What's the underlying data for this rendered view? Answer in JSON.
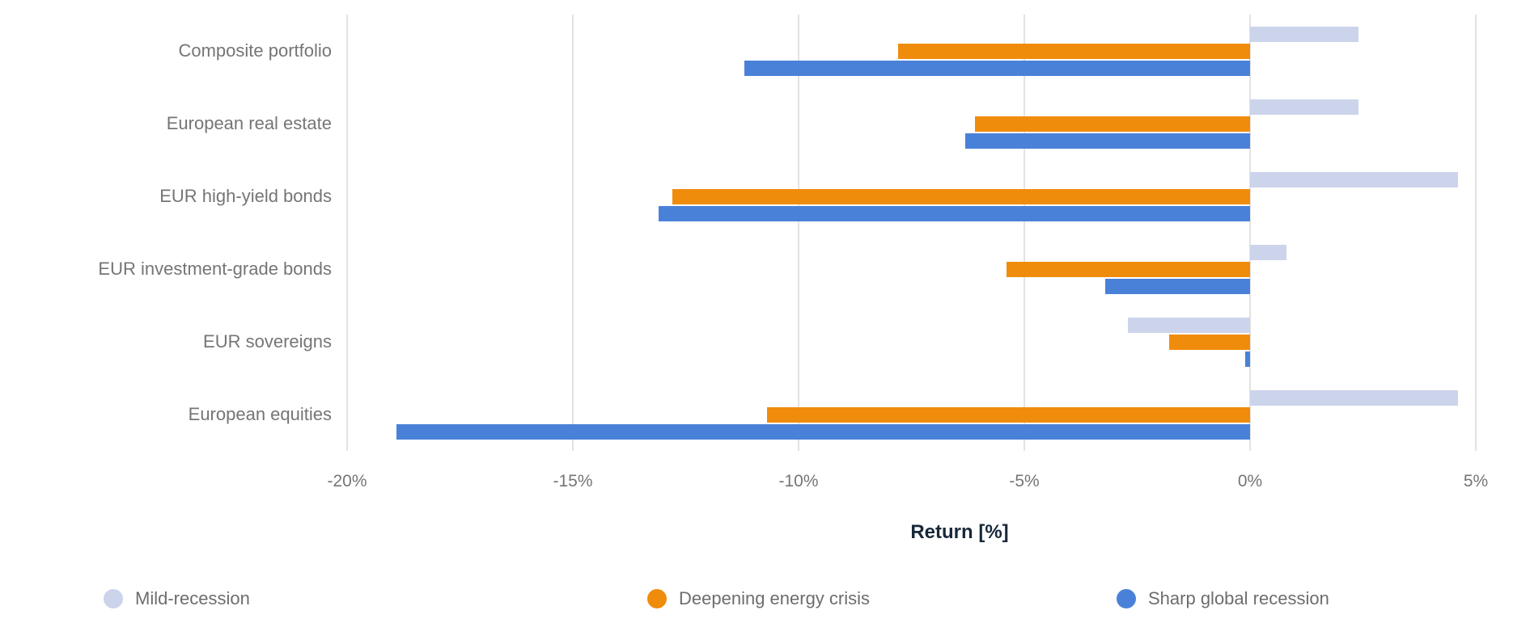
{
  "chart_data": {
    "type": "bar",
    "orientation": "horizontal",
    "title": "",
    "xlabel": "Return [%]",
    "ylabel": "",
    "xlim": [
      -20,
      5
    ],
    "xticks": [
      -20,
      -15,
      -10,
      -5,
      0,
      5
    ],
    "xtick_labels": [
      "-20%",
      "-15%",
      "-10%",
      "-5%",
      "0%",
      "5%"
    ],
    "grid": true,
    "legend_position": "bottom",
    "categories": [
      "Composite portfolio",
      "European real estate",
      "EUR high-yield bonds",
      "EUR investment-grade bonds",
      "EUR sovereigns",
      "European equities"
    ],
    "series": [
      {
        "name": "Mild-recession",
        "color": "#ccd4ec",
        "values": [
          2.4,
          2.4,
          4.6,
          0.8,
          -2.7,
          4.6
        ]
      },
      {
        "name": "Deepening energy crisis",
        "color": "#f08c0c",
        "values": [
          -7.8,
          -6.1,
          -12.8,
          -5.4,
          -1.8,
          -10.7
        ]
      },
      {
        "name": "Sharp global recession",
        "color": "#4a81d8",
        "values": [
          -11.2,
          -6.3,
          -13.1,
          -3.2,
          -0.1,
          -18.9
        ]
      }
    ]
  },
  "colors": {
    "gridline": "#e2e2e2",
    "category_text": "#757575",
    "tick_text": "#757575",
    "axis_title_text": "#18283a",
    "legend_text": "#6d6d6d",
    "background": "#ffffff"
  },
  "layout_values": {
    "legend_item_lefts": [
      128,
      800,
      1380
    ]
  }
}
